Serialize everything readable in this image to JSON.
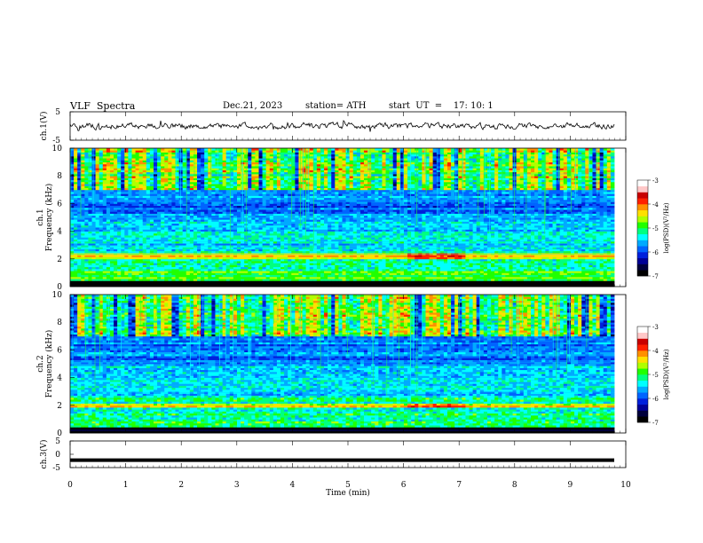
{
  "header": {
    "title": "VLF  Spectra",
    "date": "Dec.21, 2023",
    "station": "station= ATH",
    "start": "start  UT  =    17: 10: 1"
  },
  "chart_data": [
    {
      "type": "line",
      "panel": "ch1-waveform",
      "ylabel": "ch.1(V)",
      "ylim": [
        -5,
        5
      ],
      "yticks": [
        "5",
        "-5"
      ],
      "xlim": [
        0,
        10
      ],
      "series": [
        {
          "baseline": 0,
          "amplitude_range": [
            -1.3,
            1.3
          ]
        }
      ]
    },
    {
      "type": "heatmap",
      "panel": "ch1-spectrogram",
      "ylabel": "ch.1\nFrequency  (kHz)",
      "ylim": [
        0,
        10
      ],
      "yticks": [
        "0",
        "2",
        "4",
        "6",
        "8",
        "10"
      ],
      "xlim": [
        0,
        9.8
      ],
      "colorbar": {
        "label": "log(PSD)(V²/Hz)",
        "range": [
          -7,
          -3
        ],
        "ticks": [
          "-3",
          "-4",
          "-5",
          "-6",
          "-7"
        ]
      },
      "features": {
        "strong_band_khz": [
          2.0,
          2.4
        ],
        "weak_band_khz": [
          0.5,
          1.1
        ],
        "enhanced_segment_min": [
          6.1,
          7.1
        ],
        "spheric_activity_above_khz": 7
      }
    },
    {
      "type": "heatmap",
      "panel": "ch2-spectrogram",
      "ylabel": "ch.2\nFrequency  (kHz)",
      "ylim": [
        0,
        10
      ],
      "yticks": [
        "0",
        "2",
        "4",
        "6",
        "8",
        "10"
      ],
      "xlim": [
        0,
        9.8
      ],
      "colorbar": {
        "label": "log(PSD)(V²/Hz)",
        "range": [
          -7,
          -3
        ],
        "ticks": [
          "-3",
          "-4",
          "-5",
          "-6",
          "-7"
        ]
      },
      "features": {
        "strong_band_khz": [
          1.8,
          2.2
        ],
        "enhanced_segment_min": [
          6.1,
          7.1
        ],
        "spheric_activity_above_khz": 7
      }
    },
    {
      "type": "line",
      "panel": "ch3-waveform",
      "ylabel": "ch.3(V)",
      "ylim": [
        -5,
        5
      ],
      "yticks": [
        "5",
        "0",
        "-5"
      ],
      "xlim": [
        0,
        10
      ],
      "series": [
        {
          "constant": -2.2
        }
      ]
    }
  ],
  "xaxis": {
    "label": "Time  (min)",
    "ticks": [
      "0",
      "1",
      "2",
      "3",
      "4",
      "5",
      "6",
      "7",
      "8",
      "9",
      "10"
    ]
  },
  "colors": {
    "colormap": [
      "#000000",
      "#00003c",
      "#000096",
      "#0020dc",
      "#0064ff",
      "#00aaff",
      "#00ffff",
      "#00ff80",
      "#20ff00",
      "#b0ff00",
      "#ffe000",
      "#ff9000",
      "#ff2000",
      "#c80000",
      "#ffc8c8",
      "#ffffff"
    ],
    "waveform": "#000000",
    "axis": "#000000"
  }
}
